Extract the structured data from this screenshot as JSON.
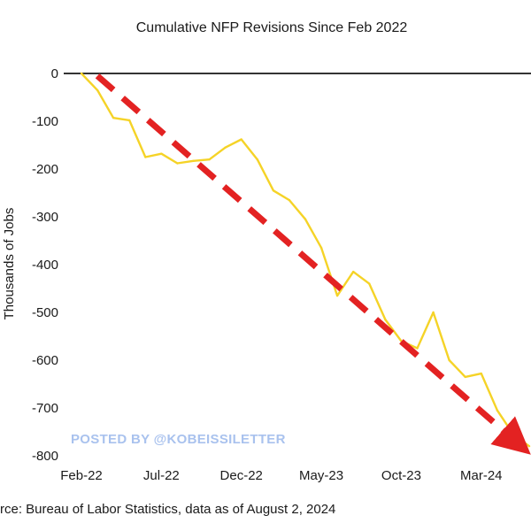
{
  "chart_data": {
    "type": "line",
    "title": "Cumulative NFP Revisions Since Feb 2022",
    "ylabel": "Thousands of Jobs",
    "xlabel": "",
    "ylim": [
      -800,
      0
    ],
    "yticks": [
      0,
      -100,
      -200,
      -300,
      -400,
      -500,
      -600,
      -700,
      -800
    ],
    "ytick_labels": [
      "0",
      "-100",
      "-200",
      "-300",
      "-400",
      "-500",
      "-600",
      "-700",
      "-800"
    ],
    "xticks": [
      {
        "label": "Feb-22",
        "index": 0
      },
      {
        "label": "Jul-22",
        "index": 5
      },
      {
        "label": "Dec-22",
        "index": 10
      },
      {
        "label": "May-23",
        "index": 15
      },
      {
        "label": "Oct-23",
        "index": 20
      },
      {
        "label": "Mar-24",
        "index": 25
      }
    ],
    "months": [
      "Feb-22",
      "Mar-22",
      "Apr-22",
      "May-22",
      "Jun-22",
      "Jul-22",
      "Aug-22",
      "Sep-22",
      "Oct-22",
      "Nov-22",
      "Dec-22",
      "Jan-23",
      "Feb-23",
      "Mar-23",
      "Apr-23",
      "May-23",
      "Jun-23",
      "Jul-23",
      "Aug-23",
      "Sep-23",
      "Oct-23",
      "Nov-23",
      "Dec-23",
      "Jan-24",
      "Feb-24",
      "Mar-24",
      "Apr-24",
      "May-24",
      "Jun-24"
    ],
    "series": [
      {
        "color": "#f5d327",
        "values": [
          0,
          -35,
          -93,
          -98,
          -175,
          -168,
          -188,
          -183,
          -180,
          -155,
          -138,
          -180,
          -245,
          -265,
          -305,
          -365,
          -465,
          -415,
          -440,
          -515,
          -560,
          -575,
          -500,
          -600,
          -635,
          -628,
          -705,
          -755,
          -780
        ]
      }
    ],
    "trend_arrow": {
      "color": "#e32222",
      "from": {
        "index": 1,
        "value": -5
      },
      "to": {
        "index": 28,
        "value": -787
      }
    },
    "zero_line": true,
    "grid": false,
    "source": "rce: Bureau of Labor Statistics, data as of August 2, 2024",
    "watermark": "POSTED BY @KOBEISSILETTER"
  }
}
